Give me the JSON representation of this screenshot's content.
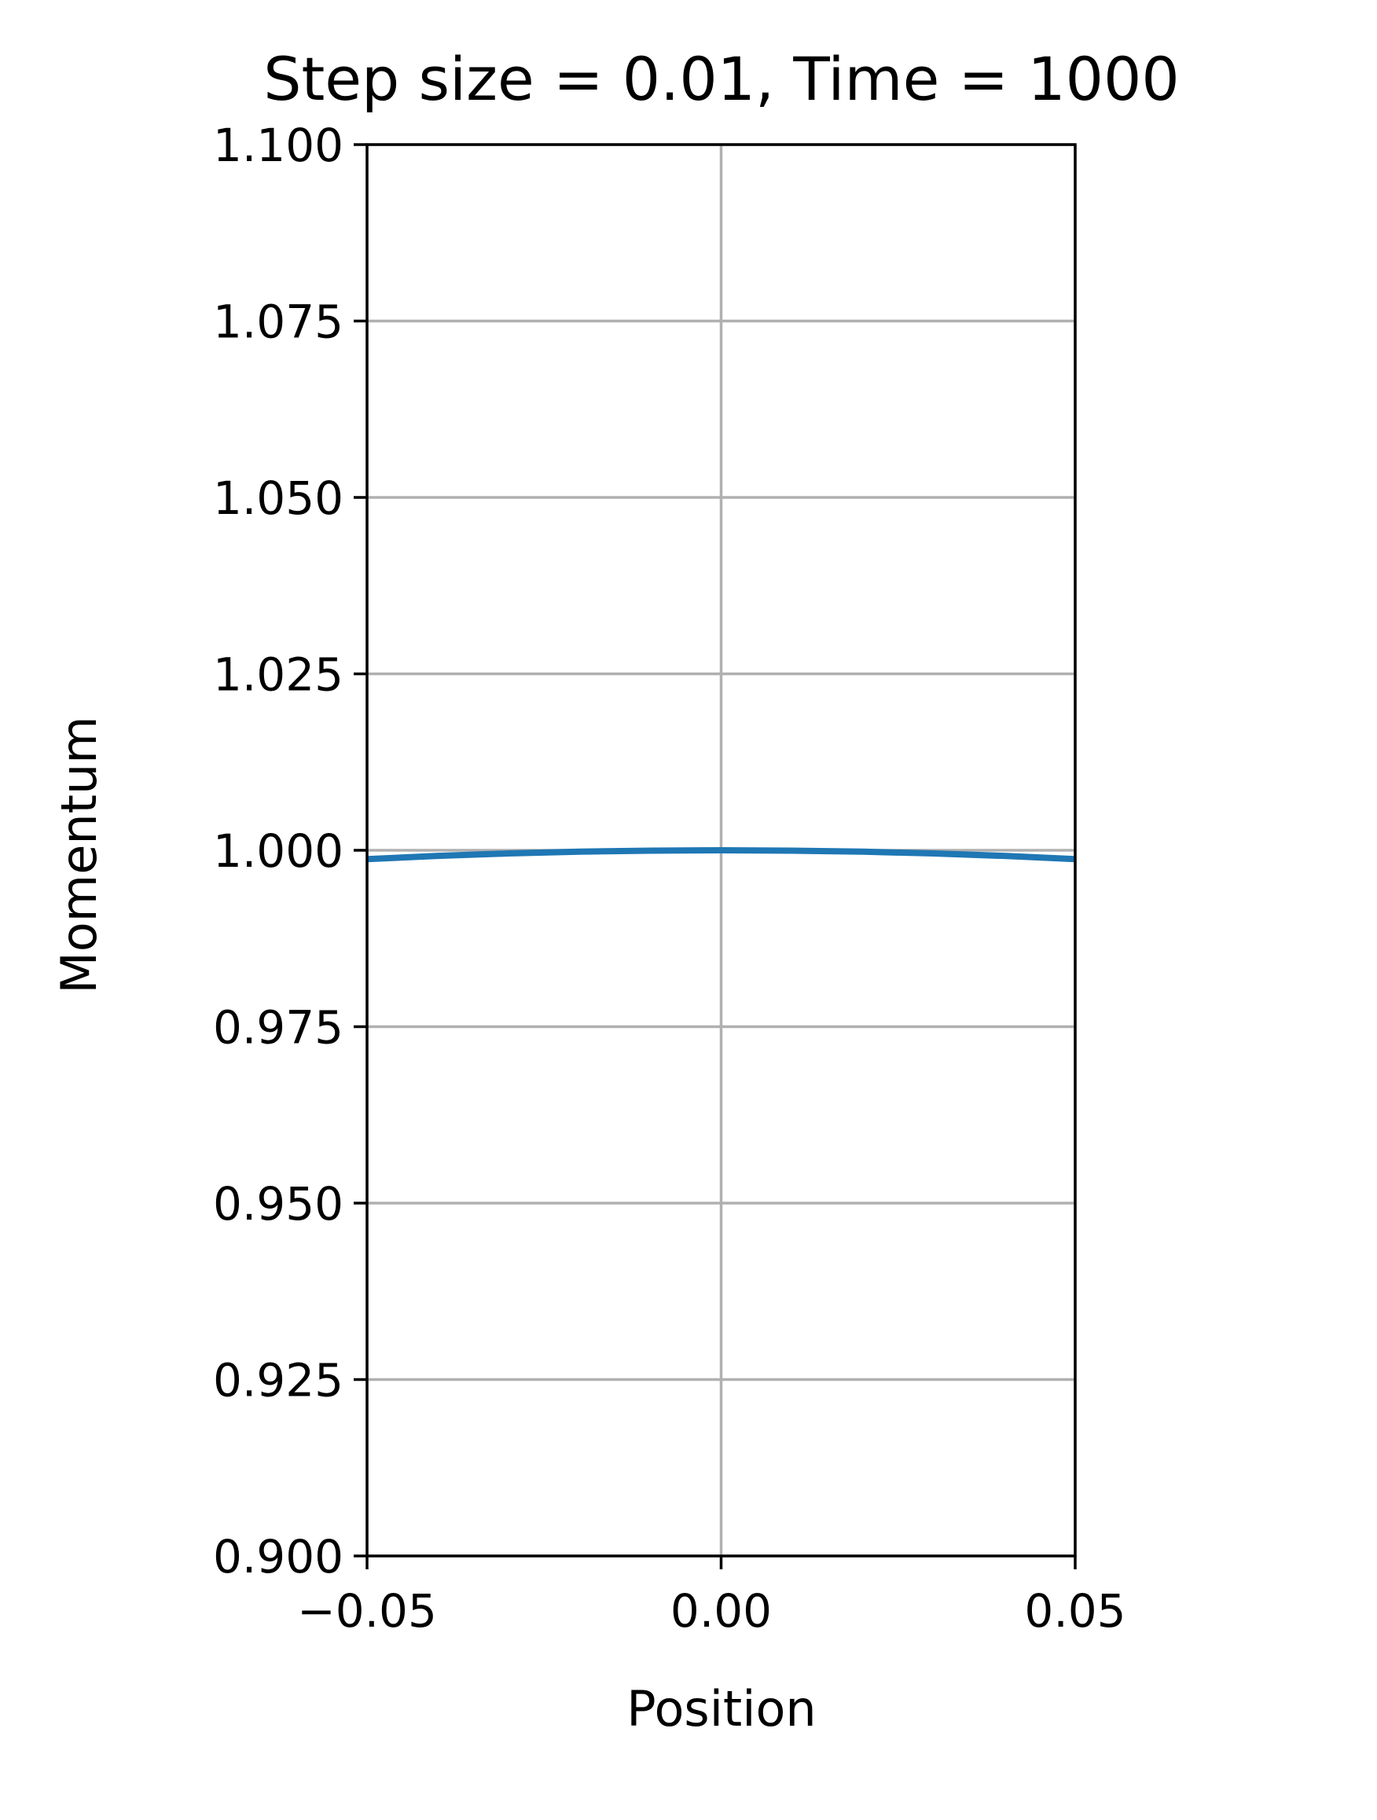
{
  "chart_data": {
    "type": "line",
    "title": "Step size = 0.01, Time = 1000",
    "xlabel": "Position",
    "ylabel": "Momentum",
    "xlim": [
      -0.05,
      0.05
    ],
    "ylim": [
      0.9,
      1.1
    ],
    "x_ticks": [
      -0.05,
      0.0,
      0.05
    ],
    "x_tick_labels": [
      "−0.05",
      "0.00",
      "0.05"
    ],
    "y_ticks": [
      0.9,
      0.925,
      0.95,
      0.975,
      1.0,
      1.025,
      1.05,
      1.075,
      1.1
    ],
    "y_tick_labels": [
      "0.900",
      "0.925",
      "0.950",
      "0.975",
      "1.000",
      "1.025",
      "1.050",
      "1.075",
      "1.100"
    ],
    "grid": true,
    "series": [
      {
        "color": "#1f77b4",
        "x": [
          -0.05,
          -0.04,
          -0.03,
          -0.02,
          -0.01,
          0.0,
          0.01,
          0.02,
          0.03,
          0.04,
          0.05
        ],
        "y": [
          0.99875,
          0.9992,
          0.99955,
          0.9998,
          0.99995,
          1.0,
          0.99995,
          0.9998,
          0.99955,
          0.9992,
          0.99875
        ]
      }
    ],
    "colors": {
      "grid": "#b0b0b0",
      "axes": "#000000",
      "line": "#1f77b4"
    }
  }
}
